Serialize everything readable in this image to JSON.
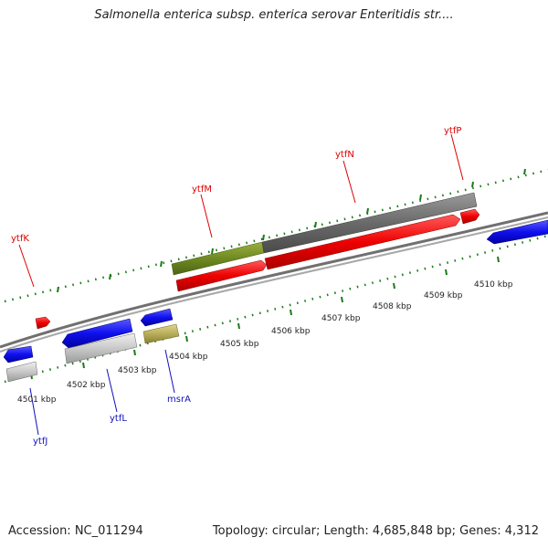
{
  "header": {
    "title": "Salmonella enterica subsp. enterica serovar Enteritidis str...."
  },
  "footer": {
    "accession": "Accession: NC_011294",
    "stats": "Topology: circular; Length: 4,685,848 bp; Genes: 4,312"
  },
  "ticks": {
    "kbp_4501": "4501 kbp",
    "kbp_4502": "4502 kbp",
    "kbp_4503": "4503 kbp",
    "kbp_4504": "4504 kbp",
    "kbp_4505": "4505 kbp",
    "kbp_4506": "4506 kbp",
    "kbp_4507": "4507 kbp",
    "kbp_4508": "4508 kbp",
    "kbp_4509": "4509 kbp",
    "kbp_4510": "4510 kbp"
  },
  "genes": {
    "ytfK": "ytfK",
    "ytfM": "ytfM",
    "ytfN": "ytfN",
    "ytfP": "ytfP",
    "ytfJ": "ytfJ",
    "ytfL": "ytfL",
    "msrA": "msrA"
  },
  "colors": {
    "forward_strand": "#dd0000",
    "reverse_strand": "#1111dd",
    "backbone": "#808080",
    "tick": "#1a7a1a",
    "gene_label_red": "#dd0000",
    "gene_label_blue": "#1111bb"
  }
}
